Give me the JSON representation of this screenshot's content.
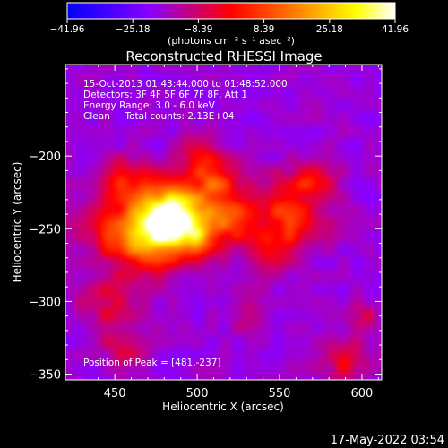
{
  "chart_data": {
    "type": "heatmap",
    "title": "Reconstructed RHESSI Image",
    "xlabel": "Heliocentric X (arcsec)",
    "ylabel": "Heliocentric Y (arcsec)",
    "xlim": [
      420,
      612
    ],
    "ylim": [
      -354,
      -137
    ],
    "x_ticks": [
      450,
      500,
      550,
      600
    ],
    "y_ticks": [
      -200,
      -250,
      -300,
      -350
    ],
    "colorbar": {
      "min": -41.96,
      "max": 41.96,
      "tick_values": [
        -41.96,
        -25.18,
        -8.39,
        8.39,
        25.18,
        41.96
      ],
      "tick_labels": [
        "-41.96",
        "-25.18",
        "-8.39",
        "8.39",
        "25.18",
        "41.96"
      ],
      "unit_label": "(photons cm⁻² s⁻¹ asec⁻²)",
      "colors": [
        "#0000ff",
        "#8a00ff",
        "#ff0000",
        "#ff8000",
        "#ffff00",
        "#ffffff"
      ]
    },
    "annotations": [
      "15-Oct-2013 01:43:44.000 to 01:48:52.000",
      "Detectors: 3F 4F 5F 6F 7F 8F, Att 1",
      "Energy Range: 3.0 - 6.0 keV",
      "Clean     Total counts: 2.13E+04"
    ],
    "peak_label": "Position of Peak = [481,-237]",
    "peak_position": [
      481,
      -237
    ],
    "grid": false
  },
  "footer": {
    "timestamp": "17-May-2022 03:54"
  }
}
